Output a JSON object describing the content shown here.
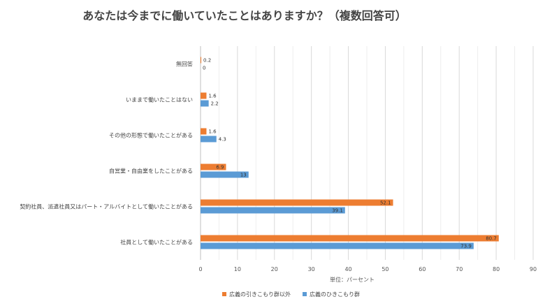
{
  "chart_data": {
    "type": "bar",
    "orientation": "horizontal",
    "title": "あなたは今までに働いていたことはありますか？（複数回答可）",
    "xlabel": "単位：パーセント",
    "ylabel": "",
    "xlim": [
      0,
      90
    ],
    "xticks": [
      "0",
      "10",
      "20",
      "30",
      "40",
      "50",
      "60",
      "70",
      "80",
      "90"
    ],
    "grid": true,
    "legend_position": "bottom",
    "categories": [
      "無回答",
      "いままで働いたことはない",
      "その他の形態で働いたことがある",
      "自営業・自由業をしたことがある",
      "契約社員、派遣社員又はパート・アルバイトとして働いたことがある",
      "社員として働いたことがある"
    ],
    "series": [
      {
        "name": "広義の引きこもり群以外",
        "color": "#ED7D31",
        "values": [
          0.2,
          1.6,
          1.6,
          6.9,
          52.1,
          80.7
        ],
        "labels": [
          "0.2",
          "1.6",
          "1.6",
          "6.9",
          "52.1",
          "80.7"
        ]
      },
      {
        "name": "広義のひきこもり群",
        "color": "#5B9BD5",
        "values": [
          0,
          2.2,
          4.3,
          13,
          39.1,
          73.9
        ],
        "labels": [
          "0",
          "2.2",
          "4.3",
          "13",
          "39.1",
          "73.9"
        ]
      }
    ]
  }
}
